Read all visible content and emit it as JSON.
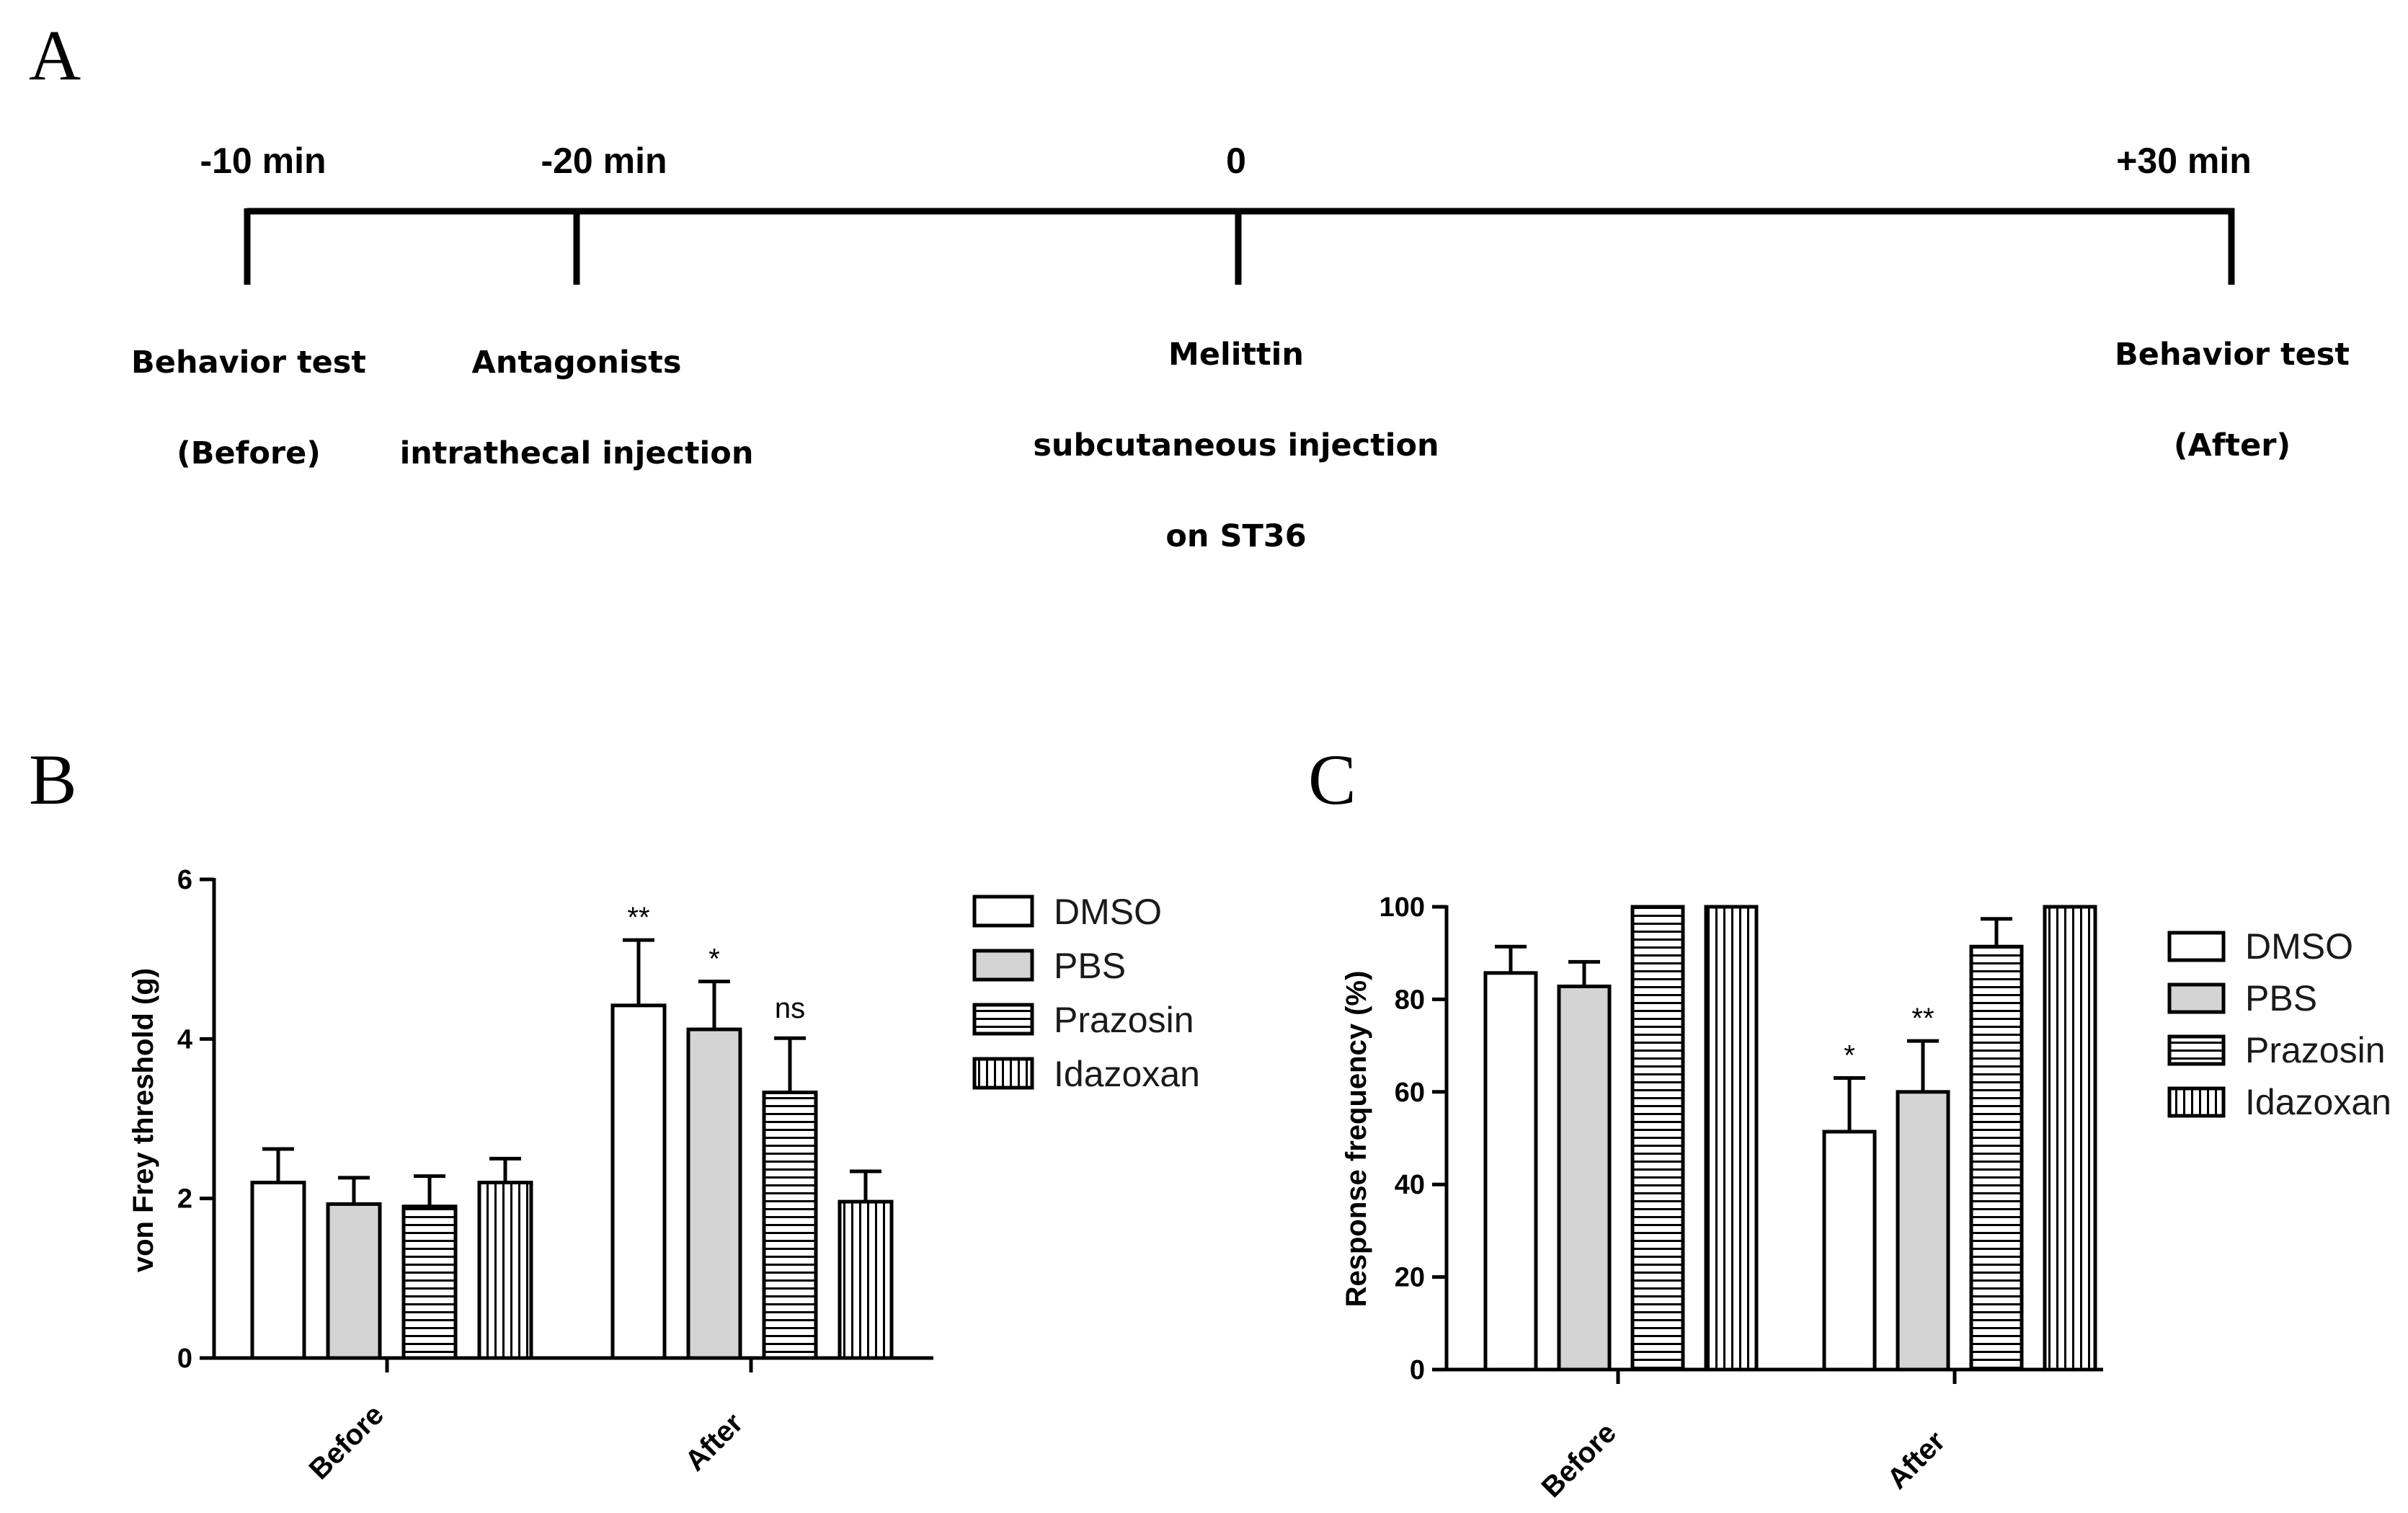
{
  "panel_labels": {
    "a": "A",
    "b": "B",
    "c": "C"
  },
  "timeline": {
    "points": [
      {
        "time": "-10 min",
        "lines": [
          "Behavior test",
          "(Before)"
        ]
      },
      {
        "time": "-20 min",
        "lines": [
          "Antagonists",
          "intrathecal injection"
        ]
      },
      {
        "time": "0",
        "lines": [
          "Melittin",
          "subcutaneous injection",
          "on ST36"
        ]
      },
      {
        "time": "+30 min",
        "lines": [
          "Behavior test",
          "(After)"
        ]
      }
    ]
  },
  "colors": {
    "DMSO": "#ffffff",
    "PBS": "#d4d4d4",
    "Prazosin": "#ffffff",
    "Idazoxan": "#ffffff"
  },
  "chart_data": [
    {
      "panel": "B",
      "type": "bar",
      "title": "",
      "xlabel": "",
      "ylabel": "von Frey threshold  (g)",
      "ylim": [
        0,
        6
      ],
      "yticks": [
        0,
        2,
        4,
        6
      ],
      "categories": [
        "Before",
        "After"
      ],
      "legend": [
        "DMSO",
        "PBS",
        "Prazosin",
        "Idazoxan"
      ],
      "legend_position": "right",
      "series": [
        {
          "name": "DMSO",
          "values": [
            2.2,
            4.42
          ],
          "errors": [
            0.42,
            0.82
          ],
          "pattern": "open"
        },
        {
          "name": "PBS",
          "values": [
            1.93,
            4.12
          ],
          "errors": [
            0.33,
            0.6
          ],
          "pattern": "gray"
        },
        {
          "name": "Prazosin",
          "values": [
            1.9,
            3.33
          ],
          "errors": [
            0.38,
            0.68
          ],
          "pattern": "horizontal-lines"
        },
        {
          "name": "Idazoxan",
          "values": [
            2.2,
            1.96
          ],
          "errors": [
            0.3,
            0.38
          ],
          "pattern": "vertical-lines"
        }
      ],
      "annotations": [
        {
          "category": "After",
          "series": "DMSO",
          "text": "**"
        },
        {
          "category": "After",
          "series": "PBS",
          "text": "*"
        },
        {
          "category": "After",
          "series": "Prazosin",
          "text": "ns"
        }
      ]
    },
    {
      "panel": "C",
      "type": "bar",
      "title": "",
      "xlabel": "",
      "ylabel": "Response frequency  (%)",
      "ylim": [
        0,
        100
      ],
      "yticks": [
        0,
        20,
        40,
        60,
        80,
        100
      ],
      "categories": [
        "Before",
        "After"
      ],
      "legend": [
        "DMSO",
        "PBS",
        "Prazosin",
        "Idazoxan"
      ],
      "legend_position": "right",
      "series": [
        {
          "name": "DMSO",
          "values": [
            85.7,
            51.4
          ],
          "errors": [
            5.7,
            11.6
          ],
          "pattern": "open"
        },
        {
          "name": "PBS",
          "values": [
            82.8,
            60.0
          ],
          "errors": [
            5.3,
            11.0
          ],
          "pattern": "gray"
        },
        {
          "name": "Prazosin",
          "values": [
            100,
            91.4
          ],
          "errors": [
            0,
            6.0
          ],
          "pattern": "horizontal-lines"
        },
        {
          "name": "Idazoxan",
          "values": [
            100,
            100
          ],
          "errors": [
            0,
            0
          ],
          "pattern": "vertical-lines"
        }
      ],
      "annotations": [
        {
          "category": "After",
          "series": "DMSO",
          "text": "*"
        },
        {
          "category": "After",
          "series": "PBS",
          "text": "**"
        }
      ]
    }
  ]
}
